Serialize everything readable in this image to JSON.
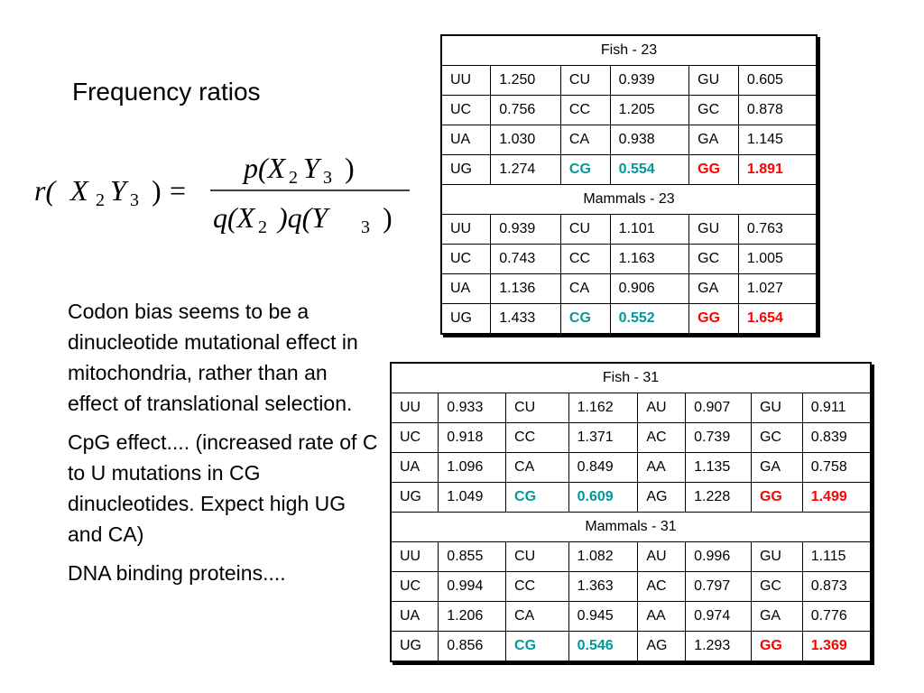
{
  "slide": {
    "title": "Frequency ratios",
    "formula": {
      "lhs_fn": "r(",
      "lhs_x": "X",
      "lhs_sub2": "2",
      "lhs_y": "Y",
      "lhs_sub3": "3",
      "lhs_close": ")",
      "equals": "=",
      "num": "p(X",
      "num_sub2": "2",
      "num_y": "Y",
      "num_sub3": "3",
      "num_close": ")",
      "den_a": "q(X",
      "den_sub2": "2",
      "den_b": ")q(Y",
      "den_sub3": "3",
      "den_close": ")"
    },
    "paragraphs": [
      "Codon bias seems to be a dinucleotide mutational effect in mitochondria, rather than an effect of translational selection.",
      "CpG effect.... (increased rate of C to U mutations in CG dinucleotides. Expect high UG and CA)",
      "DNA binding proteins...."
    ]
  },
  "colors": {
    "cg_highlight": "#009999",
    "gg_highlight": "#ff0000"
  },
  "table23": {
    "sections": [
      {
        "header": "Fish - 23",
        "rows": [
          [
            "UU",
            "1.250",
            "CU",
            "0.939",
            "GU",
            "0.605"
          ],
          [
            "UC",
            "0.756",
            "CC",
            "1.205",
            "GC",
            "0.878"
          ],
          [
            "UA",
            "1.030",
            "CA",
            "0.938",
            "GA",
            "1.145"
          ],
          [
            "UG",
            "1.274",
            "CG",
            "0.554",
            "GG",
            "1.891"
          ]
        ]
      },
      {
        "header": "Mammals - 23",
        "rows": [
          [
            "UU",
            "0.939",
            "CU",
            "1.101",
            "GU",
            "0.763"
          ],
          [
            "UC",
            "0.743",
            "CC",
            "1.163",
            "GC",
            "1.005"
          ],
          [
            "UA",
            "1.136",
            "CA",
            "0.906",
            "GA",
            "1.027"
          ],
          [
            "UG",
            "1.433",
            "CG",
            "0.552",
            "GG",
            "1.654"
          ]
        ]
      }
    ]
  },
  "table31": {
    "sections": [
      {
        "header": "Fish - 31",
        "rows": [
          [
            "UU",
            "0.933",
            "CU",
            "1.162",
            "AU",
            "0.907",
            "GU",
            "0.911"
          ],
          [
            "UC",
            "0.918",
            "CC",
            "1.371",
            "AC",
            "0.739",
            "GC",
            "0.839"
          ],
          [
            "UA",
            "1.096",
            "CA",
            "0.849",
            "AA",
            "1.135",
            "GA",
            "0.758"
          ],
          [
            "UG",
            "1.049",
            "CG",
            "0.609",
            "AG",
            "1.228",
            "GG",
            "1.499"
          ]
        ]
      },
      {
        "header": "Mammals - 31",
        "rows": [
          [
            "UU",
            "0.855",
            "CU",
            "1.082",
            "AU",
            "0.996",
            "GU",
            "1.115"
          ],
          [
            "UC",
            "0.994",
            "CC",
            "1.363",
            "AC",
            "0.797",
            "GC",
            "0.873"
          ],
          [
            "UA",
            "1.206",
            "CA",
            "0.945",
            "AA",
            "0.974",
            "GA",
            "0.776"
          ],
          [
            "UG",
            "0.856",
            "CG",
            "0.546",
            "AG",
            "1.293",
            "GG",
            "1.369"
          ]
        ]
      }
    ]
  }
}
